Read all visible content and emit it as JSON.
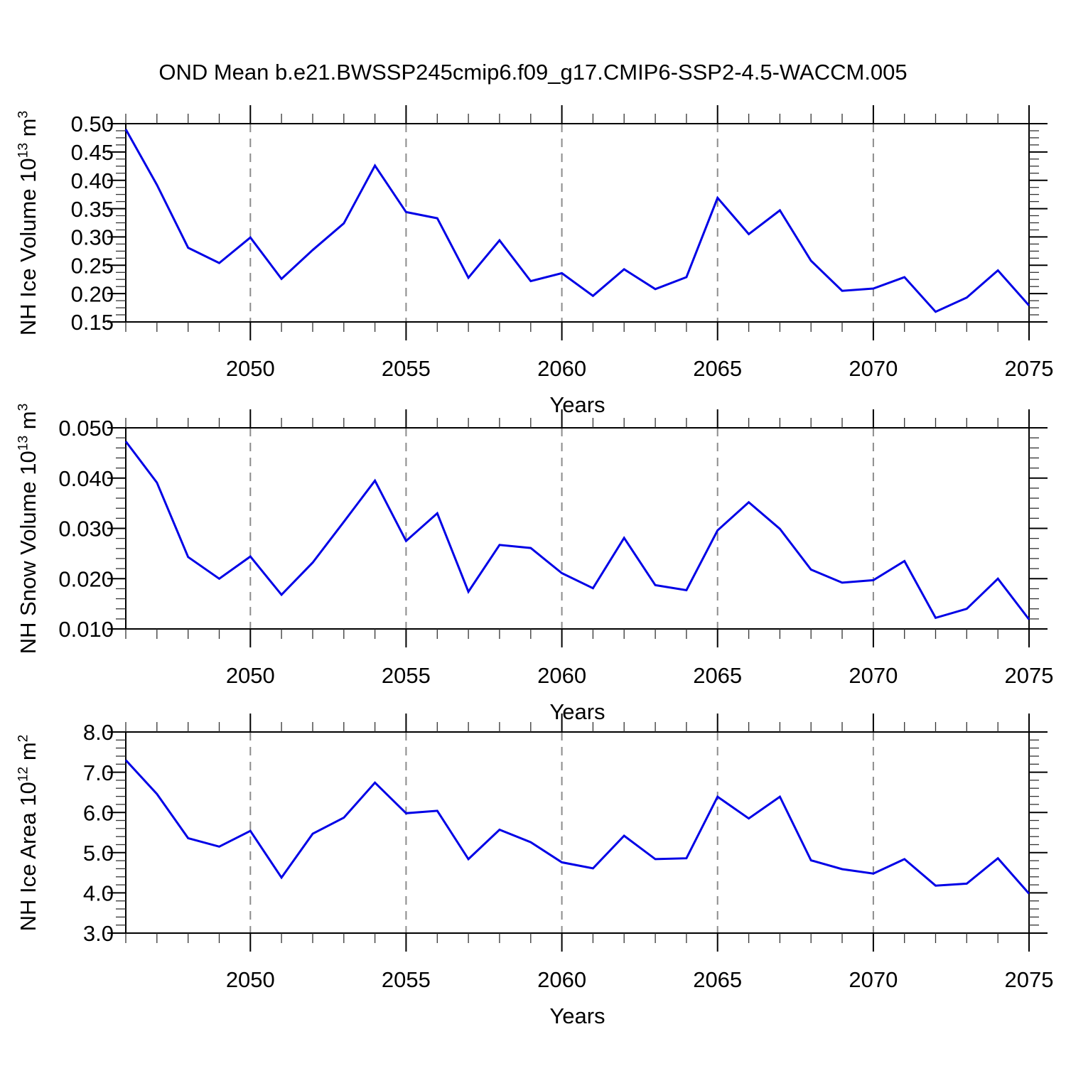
{
  "title": "OND Mean b.e21.BWSSP245cmip6.f09_g17.CMIP6-SSP2-4.5-WACCM.005",
  "chart_data": {
    "type": "line",
    "line_color": "#0000e6",
    "grid_color": "#8c8c8c",
    "xlabel": "Years",
    "xlim": [
      2046,
      2075
    ],
    "xticks": [
      2050,
      2055,
      2060,
      2065,
      2070,
      2075
    ],
    "xtick_labels": [
      "2050",
      "2055",
      "2060",
      "2065",
      "2070",
      "2075"
    ],
    "grid_x": [
      2050,
      2055,
      2060,
      2065,
      2070
    ],
    "x": [
      2046,
      2047,
      2048,
      2049,
      2050,
      2051,
      2052,
      2053,
      2054,
      2055,
      2056,
      2057,
      2058,
      2059,
      2060,
      2061,
      2062,
      2063,
      2064,
      2065,
      2066,
      2067,
      2068,
      2069,
      2070,
      2071,
      2072,
      2073,
      2074,
      2075
    ],
    "panels": [
      {
        "name": "nh-ice-volume",
        "ylabel": "NH Ice Volume 10^13 m^3",
        "ylabel_parts": {
          "prefix": "NH Ice Volume 10",
          "exp": "13",
          "unit": " m",
          "unit_exp": "3"
        },
        "ylim": [
          0.15,
          0.5
        ],
        "yticks": [
          0.15,
          0.2,
          0.25,
          0.3,
          0.35,
          0.4,
          0.45,
          0.5
        ],
        "ytick_labels": [
          "0.15",
          "0.20",
          "0.25",
          "0.30",
          "0.35",
          "0.40",
          "0.45",
          "0.50"
        ],
        "y_minor_step": 0.0125,
        "values": [
          0.49,
          0.392,
          0.281,
          0.254,
          0.299,
          0.226,
          0.277,
          0.324,
          0.426,
          0.344,
          0.333,
          0.228,
          0.294,
          0.222,
          0.236,
          0.196,
          0.243,
          0.208,
          0.229,
          0.369,
          0.305,
          0.347,
          0.258,
          0.205,
          0.209,
          0.229,
          0.168,
          0.193,
          0.241,
          0.179
        ]
      },
      {
        "name": "nh-snow-volume",
        "ylabel": "NH Snow Volume 10^13 m^3",
        "ylabel_parts": {
          "prefix": "NH Snow Volume 10",
          "exp": "13",
          "unit": " m",
          "unit_exp": "3"
        },
        "ylim": [
          0.01,
          0.05
        ],
        "yticks": [
          0.01,
          0.02,
          0.03,
          0.04,
          0.05
        ],
        "ytick_labels": [
          "0.010",
          "0.020",
          "0.030",
          "0.040",
          "0.050"
        ],
        "y_minor_step": 0.002,
        "values": [
          0.0473,
          0.0391,
          0.0243,
          0.02,
          0.0244,
          0.0168,
          0.0232,
          0.0313,
          0.0395,
          0.0275,
          0.033,
          0.0174,
          0.0267,
          0.0261,
          0.0211,
          0.0181,
          0.0281,
          0.0187,
          0.0177,
          0.0296,
          0.0352,
          0.0299,
          0.0218,
          0.0192,
          0.0197,
          0.0235,
          0.0122,
          0.014,
          0.02,
          0.0119
        ]
      },
      {
        "name": "nh-ice-area",
        "ylabel": "NH Ice Area 10^12 m^2",
        "ylabel_parts": {
          "prefix": "NH Ice Area 10",
          "exp": "12",
          "unit": " m",
          "unit_exp": "2"
        },
        "ylim": [
          3.0,
          8.0
        ],
        "yticks": [
          3.0,
          4.0,
          5.0,
          6.0,
          7.0,
          8.0
        ],
        "ytick_labels": [
          "3.0",
          "4.0",
          "5.0",
          "6.0",
          "7.0",
          "8.0"
        ],
        "y_minor_step": 0.2,
        "values": [
          7.3,
          6.46,
          5.36,
          5.15,
          5.54,
          4.38,
          5.47,
          5.87,
          6.74,
          5.98,
          6.04,
          4.84,
          5.57,
          5.26,
          4.76,
          4.61,
          5.42,
          4.84,
          4.86,
          6.39,
          5.85,
          6.39,
          4.81,
          4.59,
          4.48,
          4.84,
          4.18,
          4.23,
          4.86,
          3.98
        ]
      }
    ]
  }
}
